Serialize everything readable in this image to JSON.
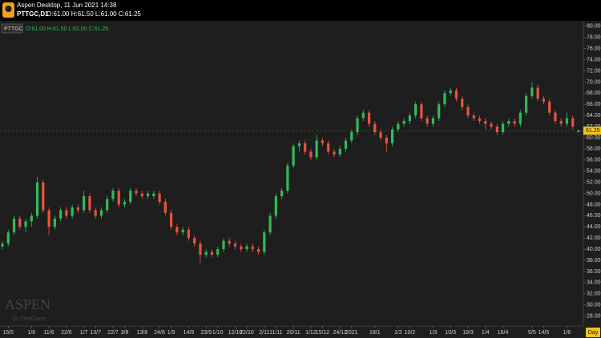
{
  "header": {
    "app_title": "Aspen Desktop, 11 Jun 2021 14:38",
    "symbol": "PTTGC,D1",
    "ohlc": "O:61.00 H:61.50 L:61.00 C:61.25"
  },
  "chart_data": {
    "type": "candlestick",
    "legend_symbol": "PTTGC",
    "legend_ohlc": "O:61.00 H:61.50 L:61.00 C:61.25",
    "watermark": "ASPEN",
    "watermark_sub": "by ThaiQuest",
    "timeframe": "Day",
    "last_price": 61.25,
    "last_price_label": "61.25",
    "up_color": "#2ebd5a",
    "down_color": "#e8553d",
    "ylim": [
      26.5,
      80.7
    ],
    "yticks": [
      {
        "value": 28,
        "label": "28.00"
      },
      {
        "value": 30,
        "label": "30.00"
      },
      {
        "value": 32,
        "label": "32.00"
      },
      {
        "value": 34,
        "label": "34.00"
      },
      {
        "value": 36,
        "label": "36.00"
      },
      {
        "value": 38,
        "label": "38.00"
      },
      {
        "value": 40,
        "label": "40.00"
      },
      {
        "value": 42,
        "label": "42.00"
      },
      {
        "value": 44,
        "label": "44.00"
      },
      {
        "value": 46,
        "label": "46.00"
      },
      {
        "value": 48,
        "label": "48.00"
      },
      {
        "value": 50,
        "label": "50.00"
      },
      {
        "value": 52,
        "label": "52.00"
      },
      {
        "value": 54,
        "label": "54.00"
      },
      {
        "value": 56,
        "label": "56.00"
      },
      {
        "value": 58,
        "label": "58.00"
      },
      {
        "value": 60,
        "label": "60.00"
      },
      {
        "value": 62,
        "label": "62.00"
      },
      {
        "value": 64,
        "label": "64.00"
      },
      {
        "value": 66,
        "label": "66.00"
      },
      {
        "value": 68,
        "label": "68.00"
      },
      {
        "value": 70,
        "label": "70.00"
      },
      {
        "value": 72,
        "label": "72.00"
      },
      {
        "value": 74,
        "label": "74.00"
      },
      {
        "value": 76,
        "label": "76.00"
      },
      {
        "value": 78,
        "label": "78.00"
      },
      {
        "value": 80,
        "label": "80.00"
      }
    ],
    "xticks": [
      {
        "value": 1,
        "label": "15/5"
      },
      {
        "value": 5,
        "label": "1/6"
      },
      {
        "value": 8,
        "label": "11/6"
      },
      {
        "value": 11,
        "label": "22/6"
      },
      {
        "value": 14,
        "label": "1/7"
      },
      {
        "value": 16,
        "label": "13/7"
      },
      {
        "value": 19,
        "label": "22/7"
      },
      {
        "value": 21,
        "label": "3/8"
      },
      {
        "value": 24,
        "label": "13/8"
      },
      {
        "value": 27,
        "label": "24/8"
      },
      {
        "value": 29,
        "label": "1/9"
      },
      {
        "value": 32,
        "label": "14/9"
      },
      {
        "value": 35,
        "label": "23/9"
      },
      {
        "value": 37,
        "label": "1/10"
      },
      {
        "value": 40,
        "label": "12/10"
      },
      {
        "value": 42,
        "label": "22/10"
      },
      {
        "value": 45,
        "label": "2/11"
      },
      {
        "value": 47,
        "label": "11/11"
      },
      {
        "value": 50,
        "label": "20/11"
      },
      {
        "value": 53,
        "label": "1/12"
      },
      {
        "value": 55,
        "label": "15/12"
      },
      {
        "value": 58,
        "label": "24/12"
      },
      {
        "value": 60,
        "label": "2021"
      },
      {
        "value": 64,
        "label": "18/1"
      },
      {
        "value": 68,
        "label": "1/2"
      },
      {
        "value": 70,
        "label": "10/2"
      },
      {
        "value": 74,
        "label": "1/3"
      },
      {
        "value": 77,
        "label": "10/3"
      },
      {
        "value": 80,
        "label": "19/3"
      },
      {
        "value": 83,
        "label": "1/4"
      },
      {
        "value": 86,
        "label": "16/4"
      },
      {
        "value": 91,
        "label": "5/5"
      },
      {
        "value": 93,
        "label": "14/5"
      },
      {
        "value": 97,
        "label": "1/6"
      }
    ],
    "candles": [
      [
        40.5,
        41.5,
        40,
        41
      ],
      [
        41,
        43.5,
        40.5,
        43
      ],
      [
        43,
        46,
        42.5,
        45.5
      ],
      [
        45.5,
        46,
        43.5,
        44
      ],
      [
        44,
        45.5,
        43,
        45
      ],
      [
        45,
        46.5,
        44,
        46
      ],
      [
        46,
        53,
        45.5,
        52
      ],
      [
        52,
        52.5,
        46.5,
        47
      ],
      [
        47,
        47.5,
        42.5,
        44
      ],
      [
        44,
        46,
        43.5,
        45.5
      ],
      [
        45.5,
        47.5,
        45,
        47
      ],
      [
        47,
        47.5,
        45.5,
        46
      ],
      [
        46,
        48,
        45.5,
        47.5
      ],
      [
        47.5,
        48,
        46.5,
        47
      ],
      [
        47,
        50.5,
        46.5,
        49.5
      ],
      [
        49.5,
        50,
        46.5,
        47
      ],
      [
        47,
        47.5,
        45.5,
        46
      ],
      [
        46,
        47.5,
        45.5,
        47
      ],
      [
        47,
        49.5,
        46.5,
        49
      ],
      [
        49,
        51,
        48.5,
        50.5
      ],
      [
        50.5,
        51,
        47.5,
        48
      ],
      [
        48,
        49,
        47.5,
        48.5
      ],
      [
        48.5,
        51,
        48,
        50.5
      ],
      [
        50.5,
        51,
        49.5,
        50
      ],
      [
        50,
        50.5,
        49,
        49.5
      ],
      [
        49.5,
        50.5,
        49,
        50
      ],
      [
        49.5,
        50.5,
        49,
        50
      ],
      [
        50,
        50.5,
        48,
        48.5
      ],
      [
        48.5,
        49,
        46,
        46.5
      ],
      [
        46.5,
        47,
        43.5,
        44
      ],
      [
        44,
        44.5,
        42.5,
        43
      ],
      [
        43,
        44,
        42.5,
        43.5
      ],
      [
        43.5,
        44,
        41.5,
        42
      ],
      [
        42,
        42.5,
        40.5,
        41
      ],
      [
        41,
        41.5,
        37.5,
        39
      ],
      [
        39,
        40,
        38.5,
        39.5
      ],
      [
        39.5,
        40,
        38.5,
        39
      ],
      [
        39,
        40.5,
        38.5,
        40
      ],
      [
        40,
        42,
        39.5,
        41.5
      ],
      [
        41.5,
        42,
        40.5,
        41
      ],
      [
        41,
        41.5,
        40,
        40.5
      ],
      [
        40.5,
        41,
        39.5,
        40
      ],
      [
        40,
        41,
        39.5,
        40.5
      ],
      [
        40.5,
        41,
        39.5,
        40
      ],
      [
        40,
        40.5,
        39,
        39.5
      ],
      [
        39.5,
        43.5,
        39,
        43
      ],
      [
        43,
        46.5,
        42.5,
        46
      ],
      [
        46,
        50,
        45.5,
        49.5
      ],
      [
        49.5,
        51,
        49,
        50.5
      ],
      [
        50.5,
        55.5,
        50,
        55
      ],
      [
        55,
        59,
        54.5,
        58.5
      ],
      [
        58.5,
        59.5,
        57.5,
        59
      ],
      [
        59,
        59.5,
        57,
        57.5
      ],
      [
        57.5,
        58,
        56,
        56.5
      ],
      [
        56.5,
        60.5,
        56,
        59.5
      ],
      [
        59.5,
        60,
        58.5,
        59
      ],
      [
        59,
        59.5,
        57,
        57.5
      ],
      [
        57.5,
        58,
        56.5,
        57
      ],
      [
        57,
        58.5,
        56.5,
        58
      ],
      [
        58,
        60,
        57.5,
        59.5
      ],
      [
        59.5,
        61.5,
        59,
        61
      ],
      [
        61,
        64,
        60.5,
        63.5
      ],
      [
        63.5,
        65,
        63,
        64.5
      ],
      [
        64.5,
        65,
        62,
        62.5
      ],
      [
        62.5,
        63,
        60.5,
        61
      ],
      [
        61,
        61.5,
        59.5,
        60
      ],
      [
        60,
        60.5,
        57.5,
        59
      ],
      [
        59,
        62,
        58.5,
        61.5
      ],
      [
        61.5,
        63,
        61,
        62.5
      ],
      [
        62.5,
        63.5,
        62,
        63
      ],
      [
        63,
        64.5,
        62.5,
        64
      ],
      [
        64,
        66.5,
        63.5,
        66
      ],
      [
        66,
        66.5,
        63,
        63.5
      ],
      [
        63.5,
        64,
        62,
        62.5
      ],
      [
        62.5,
        64,
        62,
        63.5
      ],
      [
        63.5,
        66.5,
        63,
        66
      ],
      [
        66,
        68.5,
        65.5,
        68
      ],
      [
        68,
        69,
        67.5,
        68.5
      ],
      [
        68.5,
        69,
        66.5,
        67
      ],
      [
        67,
        67.5,
        65,
        65.5
      ],
      [
        65.5,
        66,
        63.5,
        64
      ],
      [
        64,
        64.5,
        63,
        63.5
      ],
      [
        63.5,
        64,
        62.5,
        63
      ],
      [
        63,
        63.5,
        61.5,
        62.5
      ],
      [
        62.5,
        63,
        61.5,
        62
      ],
      [
        62,
        62.5,
        60.5,
        61
      ],
      [
        61,
        63,
        60.5,
        62.5
      ],
      [
        62.5,
        63.5,
        62,
        63
      ],
      [
        63,
        63.5,
        62,
        62.5
      ],
      [
        62.5,
        65,
        62,
        64.5
      ],
      [
        64.5,
        68,
        64,
        67.5
      ],
      [
        67.5,
        70,
        67,
        69
      ],
      [
        69,
        69.5,
        66.5,
        67
      ],
      [
        67,
        67.5,
        66,
        66.5
      ],
      [
        66.5,
        67,
        64,
        64.5
      ],
      [
        64.5,
        65,
        62.5,
        63
      ],
      [
        63,
        63.5,
        62,
        62.5
      ],
      [
        62.5,
        64.5,
        62,
        63.5
      ],
      [
        63.5,
        64,
        61.5,
        62
      ],
      [
        61,
        61.5,
        61,
        61.25
      ]
    ]
  }
}
